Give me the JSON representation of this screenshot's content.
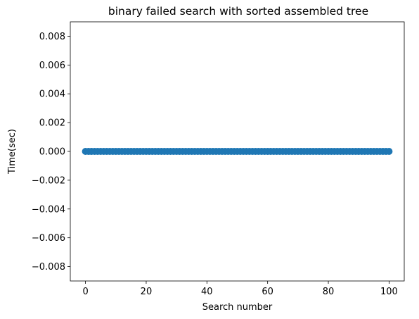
{
  "chart_data": {
    "type": "scatter",
    "title": "binary failed search with sorted assembled tree",
    "xlabel": "Search number",
    "ylabel": "Time(sec)",
    "xlim": [
      -5,
      105
    ],
    "ylim": [
      -0.009,
      0.009
    ],
    "x_ticks": [
      0,
      20,
      40,
      60,
      80,
      100
    ],
    "x_tick_labels": [
      "0",
      "20",
      "40",
      "60",
      "80",
      "100"
    ],
    "y_ticks": [
      0.008,
      0.006,
      0.004,
      0.002,
      0.0,
      -0.002,
      -0.004,
      -0.006,
      -0.008
    ],
    "y_tick_labels": [
      "0.008",
      "0.006",
      "0.004",
      "0.002",
      "0.000",
      "−0.002",
      "−0.004",
      "−0.006",
      "−0.008"
    ],
    "grid": false,
    "series": [
      {
        "color": "#1f77b4",
        "x": [
          0,
          1,
          2,
          3,
          4,
          5,
          6,
          7,
          8,
          9,
          10,
          11,
          12,
          13,
          14,
          15,
          16,
          17,
          18,
          19,
          20,
          21,
          22,
          23,
          24,
          25,
          26,
          27,
          28,
          29,
          30,
          31,
          32,
          33,
          34,
          35,
          36,
          37,
          38,
          39,
          40,
          41,
          42,
          43,
          44,
          45,
          46,
          47,
          48,
          49,
          50,
          51,
          52,
          53,
          54,
          55,
          56,
          57,
          58,
          59,
          60,
          61,
          62,
          63,
          64,
          65,
          66,
          67,
          68,
          69,
          70,
          71,
          72,
          73,
          74,
          75,
          76,
          77,
          78,
          79,
          80,
          81,
          82,
          83,
          84,
          85,
          86,
          87,
          88,
          89,
          90,
          91,
          92,
          93,
          94,
          95,
          96,
          97,
          98,
          99,
          100
        ],
        "y": [
          0,
          0,
          0,
          0,
          0,
          0,
          0,
          0,
          0,
          0,
          0,
          0,
          0,
          0,
          0,
          0,
          0,
          0,
          0,
          0,
          0,
          0,
          0,
          0,
          0,
          0,
          0,
          0,
          0,
          0,
          0,
          0,
          0,
          0,
          0,
          0,
          0,
          0,
          0,
          0,
          0,
          0,
          0,
          0,
          0,
          0,
          0,
          0,
          0,
          0,
          0,
          0,
          0,
          0,
          0,
          0,
          0,
          0,
          0,
          0,
          0,
          0,
          0,
          0,
          0,
          0,
          0,
          0,
          0,
          0,
          0,
          0,
          0,
          0,
          0,
          0,
          0,
          0,
          0,
          0,
          0,
          0,
          0,
          0,
          0,
          0,
          0,
          0,
          0,
          0,
          0,
          0,
          0,
          0,
          0,
          0,
          0,
          0,
          0,
          0,
          0
        ]
      }
    ]
  }
}
